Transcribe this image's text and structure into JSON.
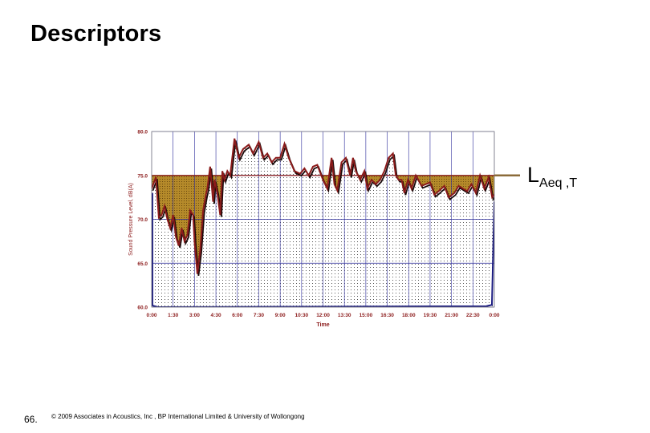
{
  "slide": {
    "title": "Descriptors",
    "page_number": "66.",
    "copyright": "© 2009 Associates in Acoustics, Inc , BP International Limited & University of Wollongong"
  },
  "annotation": {
    "main": "L",
    "subscript": "Aeq ,T"
  },
  "colors": {
    "measured_line": "#8b1a1a",
    "shadow_line": "#1a0a0a",
    "above_fill": "#b58a2a",
    "below_fill": "#dcdcdc",
    "baseline": "#1a1a80",
    "grid": "#2a2a9a",
    "axis_text": "#8b1a1a",
    "leq_marker": "#8b6b3a"
  },
  "chart_data": {
    "type": "line",
    "title": "",
    "xlabel": "Time",
    "ylabel": "Sound Pressure Level, dB(A)",
    "ylim": [
      60,
      80
    ],
    "xlim": [
      0,
      24
    ],
    "grid": true,
    "leq_level": 75,
    "yticks": [
      "60.0",
      "65.0",
      "70.0",
      "75.0",
      "80.0"
    ],
    "xticks": [
      "0:00",
      "1:30",
      "3:00",
      "4:30",
      "6:00",
      "7:30",
      "9:00",
      "10:30",
      "12:00",
      "13:30",
      "15:00",
      "16:30",
      "18:00",
      "19:30",
      "21:00",
      "22:30",
      "0:00"
    ],
    "series": [
      {
        "x": [
          0.0,
          0.3,
          0.5,
          0.7,
          0.9,
          1.1,
          1.3,
          1.5,
          1.7,
          1.9,
          2.1,
          2.3,
          2.5,
          2.7,
          2.9,
          3.0,
          3.2,
          3.4,
          3.6,
          3.8,
          3.9,
          4.1,
          4.3,
          4.4,
          4.6,
          4.8,
          4.95,
          5.1,
          5.3,
          5.5,
          5.8,
          6.1,
          6.4,
          6.8,
          7.1,
          7.5,
          7.8,
          8.1,
          8.4,
          8.7,
          9.0,
          9.3,
          9.6,
          10.0,
          10.4,
          10.7,
          11.0,
          11.3,
          11.6,
          12.0,
          12.3,
          12.6,
          12.8,
          13.0,
          13.3,
          13.6,
          13.9,
          14.1,
          14.3,
          14.6,
          14.9,
          15.1,
          15.4,
          15.7,
          16.0,
          16.3,
          16.6,
          16.9,
          17.1,
          17.3,
          17.5,
          17.7,
          17.95,
          18.2,
          18.5,
          18.9,
          19.2,
          19.5,
          19.8,
          20.1,
          20.5,
          20.8,
          21.2,
          21.5,
          21.8,
          22.1,
          22.4,
          22.7,
          23.0,
          23.3,
          23.6,
          23.85,
          24.0
        ],
        "y": [
          73.5,
          74.8,
          70.2,
          70.5,
          71.5,
          70.0,
          69.0,
          70.5,
          68.0,
          67.0,
          69.0,
          67.5,
          68.2,
          71.0,
          70.5,
          67.5,
          63.8,
          66.5,
          71.0,
          72.8,
          73.5,
          76.0,
          72.0,
          74.5,
          73.0,
          70.5,
          75.5,
          74.5,
          75.5,
          75.0,
          79.2,
          77.0,
          78.0,
          78.5,
          77.5,
          78.8,
          77.0,
          77.5,
          76.5,
          77.0,
          77.0,
          78.6,
          77.0,
          75.5,
          75.2,
          75.8,
          75.0,
          76.0,
          76.2,
          74.5,
          73.5,
          77.0,
          74.0,
          73.3,
          76.5,
          77.0,
          75.0,
          77.0,
          75.5,
          74.5,
          75.5,
          73.5,
          74.5,
          74.0,
          74.5,
          75.5,
          77.0,
          77.5,
          75.0,
          74.5,
          74.5,
          73.0,
          74.5,
          73.5,
          75.0,
          73.8,
          74.0,
          74.2,
          72.8,
          73.2,
          73.8,
          72.5,
          73.0,
          73.8,
          73.5,
          73.2,
          74.0,
          73.0,
          75.0,
          73.5,
          74.8,
          72.5,
          72.8
        ]
      }
    ]
  }
}
